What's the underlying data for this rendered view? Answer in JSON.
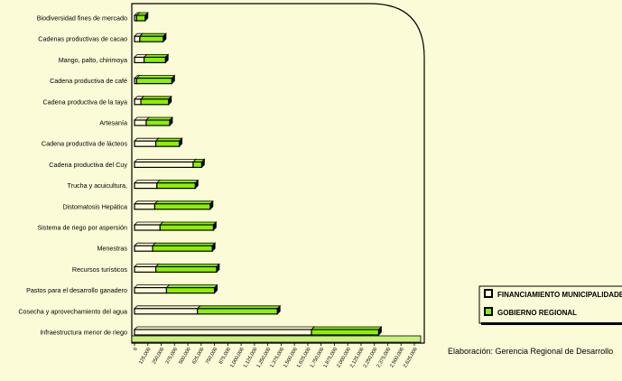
{
  "chart_data": {
    "type": "bar",
    "orientation": "horizontal",
    "stacked": true,
    "title": "",
    "xlabel": "",
    "ylabel": "",
    "categories": [
      "Biodiversidad fines de mercado",
      "Cadenas productivas de cacao",
      "Mango, palto, chirimoya",
      "Cadena productiva de café",
      "Cadena productiva de la taya",
      "Artesanía",
      "Cadena productiva de lácteos",
      "Cadena productiva del Cuy",
      "Trucha y acuicultura,",
      "Distomatosis Hepática",
      "Sistema de riego por aspersión",
      "Menestras",
      "Recursos turísticos",
      "Pastos para el desarrollo ganadero",
      "Cosecha y aprovechamiento del agua",
      "Infraestructura menor de riego"
    ],
    "series": [
      {
        "name": "FINANCIAMIENTO MUNICIPALIDADES",
        "color": "#fbfbd8",
        "values": [
          20000,
          50000,
          90000,
          20000,
          60000,
          110000,
          200000,
          550000,
          210000,
          190000,
          240000,
          170000,
          200000,
          300000,
          590000,
          1660000
        ]
      },
      {
        "name": "GOBIERNO REGIONAL",
        "color": "#8cf000",
        "values": [
          80000,
          220000,
          200000,
          330000,
          260000,
          220000,
          220000,
          80000,
          360000,
          520000,
          500000,
          560000,
          570000,
          450000,
          750000,
          630000
        ]
      }
    ],
    "xticks": [
      "0",
      "125,000",
      "250,000",
      "375,000",
      "500,000",
      "625,000",
      "750,000",
      "875,000",
      "1,000,000",
      "1,125,000",
      "1,250,000",
      "1,375,000",
      "1,500,000",
      "1,625,000",
      "1,750,000",
      "1,875,000",
      "2,000,000",
      "2,125,000",
      "2,250,000",
      "2,375,000",
      "2,500,000",
      "2,625,000"
    ],
    "xlim": [
      0,
      2625000
    ],
    "grid": false,
    "legend_position": "right"
  },
  "source": "Elaboración: Gerencia Regional de Desarrollo"
}
